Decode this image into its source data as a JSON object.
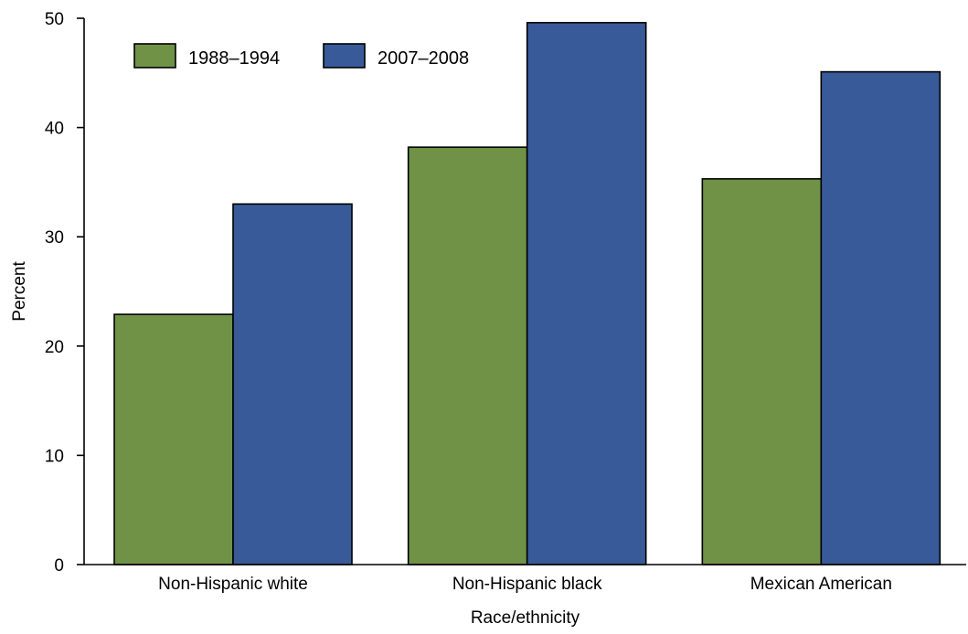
{
  "chart_data": {
    "type": "bar",
    "title": "",
    "xlabel": "Race/ethnicity",
    "ylabel": "Percent",
    "ylim": [
      0,
      50
    ],
    "yticks": [
      0,
      10,
      20,
      30,
      40,
      50
    ],
    "grid": false,
    "legend_position": "top-left",
    "categories": [
      "Non-Hispanic white",
      "Non-Hispanic black",
      "Mexican American"
    ],
    "series": [
      {
        "name": "1988–1994",
        "color": "#6f9246",
        "values": [
          22.9,
          38.2,
          35.3
        ]
      },
      {
        "name": "2007–2008",
        "color": "#385a98",
        "values": [
          33.0,
          49.6,
          45.1
        ]
      }
    ]
  }
}
